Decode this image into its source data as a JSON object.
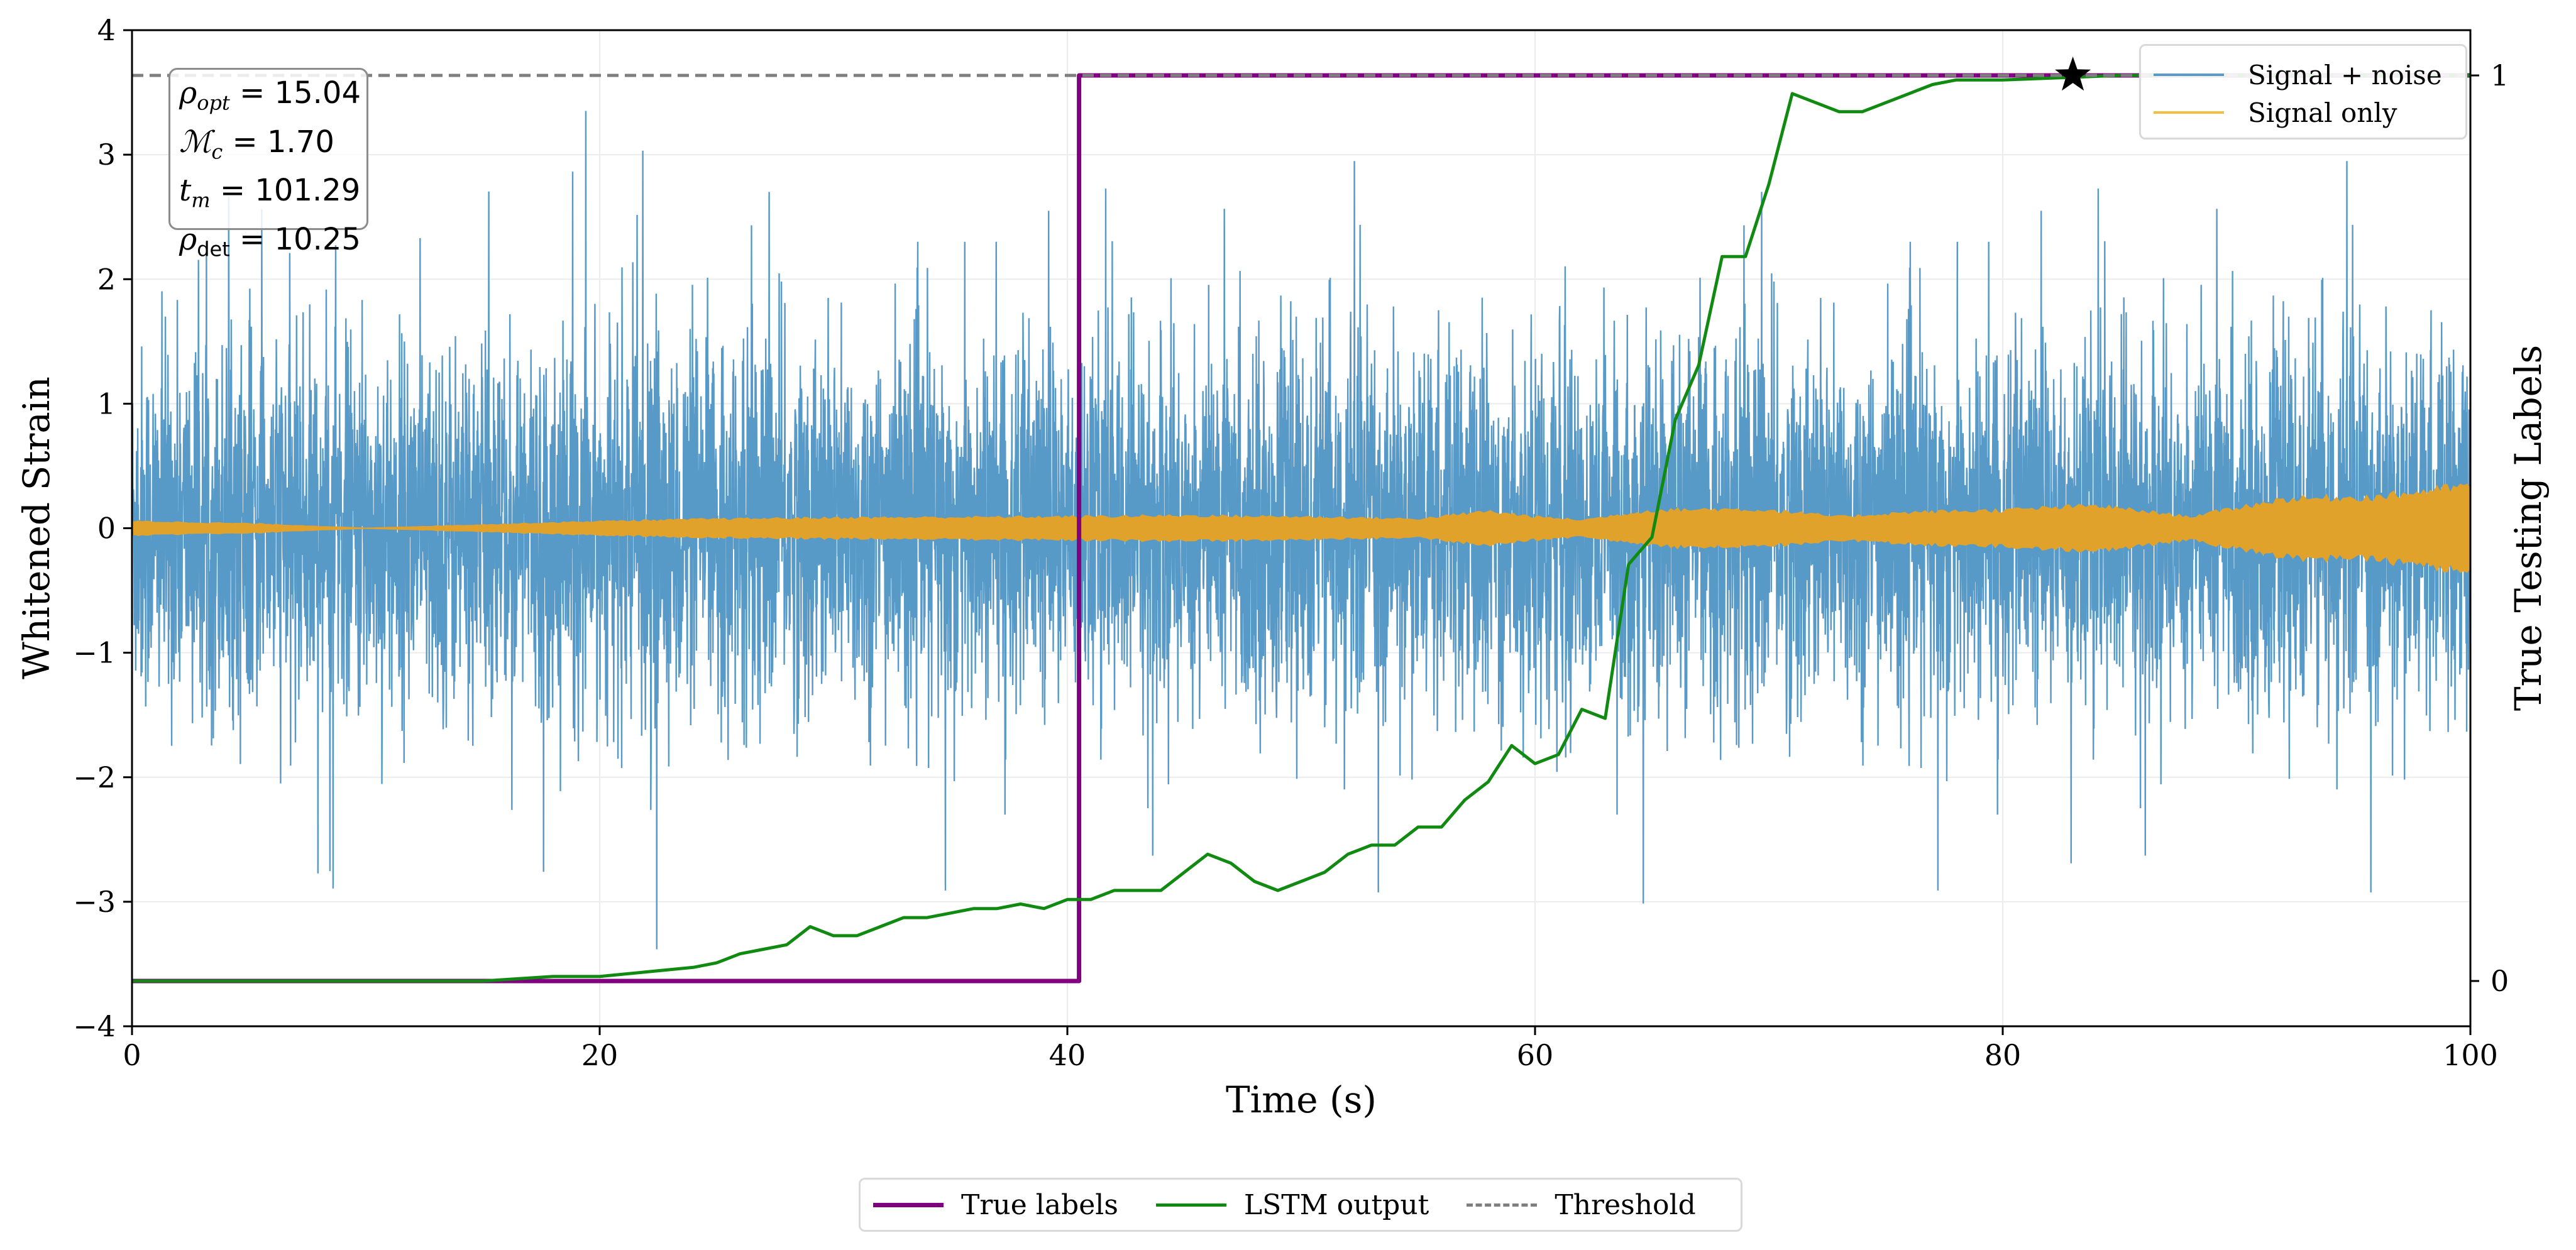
{
  "chart_data": {
    "type": "line",
    "title": "",
    "xlabel": "Time (s)",
    "ylabel": "Whitened Strain",
    "ylabel_right": "True Testing Labels",
    "xlim": [
      0,
      100
    ],
    "ylim": [
      -4,
      4
    ],
    "ylim_right": [
      -0.05,
      1.05
    ],
    "x_ticks": [
      0,
      20,
      40,
      60,
      80,
      100
    ],
    "x_tick_labels": [
      "0",
      "20",
      "40",
      "60",
      "80",
      "100"
    ],
    "y_ticks": [
      -4,
      -3,
      -2,
      -1,
      0,
      1,
      2,
      3,
      4
    ],
    "y_tick_labels": [
      "−4",
      "−3",
      "−2",
      "−1",
      "0",
      "1",
      "2",
      "3",
      "4"
    ],
    "y_right_ticks": [
      0,
      1
    ],
    "y_right_tick_labels": [
      "0",
      "1"
    ],
    "grid": true,
    "annotations": {
      "rho_opt": "15.04",
      "mc": "1.70",
      "t_m": "101.29",
      "rho_det": "10.25"
    },
    "detection_marker": {
      "x": 83.0,
      "y_label": 1.0,
      "symbol": "star"
    },
    "series": [
      {
        "name": "Signal + noise",
        "axis": "left",
        "style": "noise",
        "color": "#5799c7",
        "sigma": 0.72,
        "envelope_max": 2.3,
        "spike_max": 3.4
      },
      {
        "name": "Signal only",
        "axis": "left",
        "style": "envelope",
        "color": "#e0a22a",
        "x": [
          0,
          5,
          10,
          15,
          20,
          25,
          30,
          40,
          45,
          50,
          55,
          58,
          60,
          62,
          65,
          68,
          70,
          73,
          76,
          80,
          84,
          88,
          92,
          96,
          100
        ],
        "amplitude": [
          0.06,
          0.04,
          0.0,
          0.03,
          0.06,
          0.08,
          0.09,
          0.1,
          0.11,
          0.1,
          0.08,
          0.15,
          0.1,
          0.07,
          0.16,
          0.17,
          0.16,
          0.1,
          0.14,
          0.16,
          0.2,
          0.1,
          0.26,
          0.28,
          0.38
        ]
      },
      {
        "name": "True labels",
        "axis": "right",
        "style": "step",
        "color": "#800080",
        "x": [
          0,
          40.5,
          40.5,
          100
        ],
        "y": [
          0,
          0,
          1,
          1
        ]
      },
      {
        "name": "LSTM output",
        "axis": "right",
        "style": "line",
        "color": "#108a10",
        "x": [
          0,
          10,
          15,
          18,
          20,
          22,
          24,
          25,
          26,
          27,
          28,
          29,
          30,
          31,
          32,
          33,
          34,
          35,
          36,
          37,
          38,
          39,
          40,
          41,
          42,
          43,
          44,
          45,
          46,
          47,
          48,
          49,
          50,
          51,
          52,
          53,
          54,
          55,
          56,
          57,
          58,
          59,
          60,
          61,
          62,
          63,
          64,
          65,
          66,
          67,
          68,
          69,
          70,
          71,
          72,
          73,
          74,
          75,
          76,
          77,
          78,
          80,
          85,
          90,
          95,
          100
        ],
        "y": [
          0.0,
          0.0,
          0.0,
          0.005,
          0.005,
          0.01,
          0.015,
          0.02,
          0.03,
          0.035,
          0.04,
          0.06,
          0.05,
          0.05,
          0.06,
          0.07,
          0.07,
          0.075,
          0.08,
          0.08,
          0.085,
          0.08,
          0.09,
          0.09,
          0.1,
          0.1,
          0.1,
          0.12,
          0.14,
          0.13,
          0.11,
          0.1,
          0.11,
          0.12,
          0.14,
          0.15,
          0.15,
          0.17,
          0.17,
          0.2,
          0.22,
          0.26,
          0.24,
          0.25,
          0.3,
          0.29,
          0.46,
          0.49,
          0.62,
          0.68,
          0.8,
          0.8,
          0.88,
          0.98,
          0.97,
          0.96,
          0.96,
          0.97,
          0.98,
          0.99,
          0.995,
          0.995,
          1.0,
          1.0,
          1.0,
          1.0
        ]
      },
      {
        "name": "Threshold",
        "axis": "right",
        "style": "hline",
        "color": "#7f7f7f",
        "y": 1.0
      }
    ]
  },
  "legend_top": [
    {
      "label": "Signal + noise",
      "color": "#5799c7"
    },
    {
      "label": "Signal only",
      "color": "#f0c040"
    }
  ],
  "legend_bottom": [
    {
      "label": "True labels",
      "color": "#800080"
    },
    {
      "label": "LSTM output",
      "color": "#108a10"
    },
    {
      "label": "Threshold",
      "color": "#7f7f7f"
    }
  ]
}
